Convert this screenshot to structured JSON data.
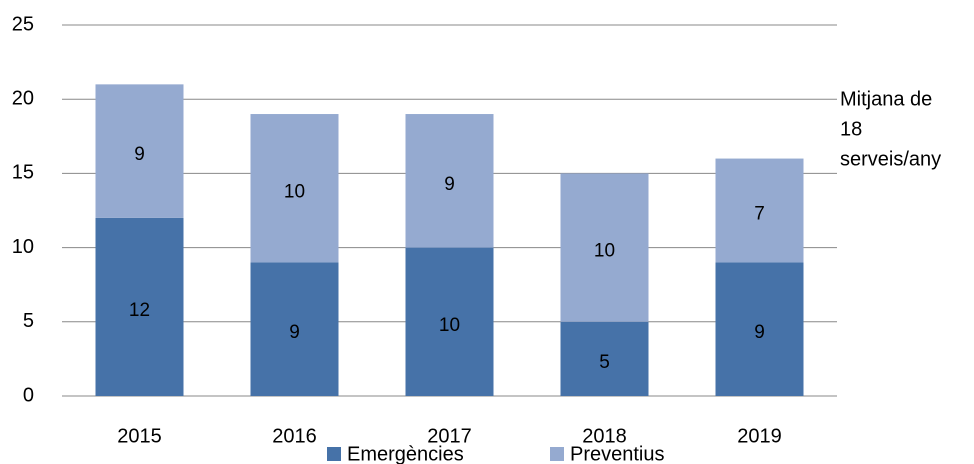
{
  "chart_data": {
    "type": "stacked_bar",
    "categories": [
      "2015",
      "2016",
      "2017",
      "2018",
      "2019"
    ],
    "series": [
      {
        "name": "Emergències",
        "color": "#4672a8",
        "values": [
          12,
          9,
          10,
          5,
          9
        ]
      },
      {
        "name": "Preventius",
        "color": "#95aad0",
        "values": [
          9,
          10,
          9,
          10,
          7
        ]
      }
    ],
    "ylim": [
      0,
      25
    ],
    "yticks": [
      0,
      5,
      10,
      15,
      20,
      25
    ],
    "grid": true,
    "annotation_lines": [
      "Mitjana de",
      "18",
      "serveis/any"
    ],
    "legend": "bottom"
  }
}
